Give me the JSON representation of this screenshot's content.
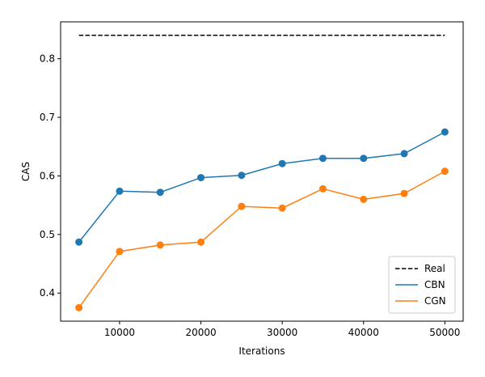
{
  "chart_data": {
    "type": "line",
    "title": "",
    "xlabel": "Iterations",
    "ylabel": "CAS",
    "xlim": [
      2750,
      52250
    ],
    "ylim": [
      0.352,
      0.863
    ],
    "xticks": [
      10000,
      20000,
      30000,
      40000,
      50000
    ],
    "yticks": [
      0.4,
      0.5,
      0.6,
      0.7,
      0.8
    ],
    "grid": false,
    "legend_position": "lower-right",
    "x": [
      5000,
      10000,
      15000,
      20000,
      25000,
      30000,
      35000,
      40000,
      45000,
      50000
    ],
    "series": [
      {
        "name": "Real",
        "style": "dashed",
        "color": "#000000",
        "x": [
          5000,
          50000
        ],
        "values": [
          0.84,
          0.84
        ],
        "markers": false
      },
      {
        "name": "CBN",
        "style": "solid",
        "color": "#1f77b4",
        "values": [
          0.487,
          0.574,
          0.572,
          0.597,
          0.601,
          0.621,
          0.63,
          0.63,
          0.638,
          0.675
        ],
        "markers": true
      },
      {
        "name": "CGN",
        "style": "solid",
        "color": "#ff7f0e",
        "values": [
          0.375,
          0.471,
          0.482,
          0.487,
          0.548,
          0.545,
          0.578,
          0.56,
          0.57,
          0.608
        ],
        "markers": true
      }
    ]
  }
}
